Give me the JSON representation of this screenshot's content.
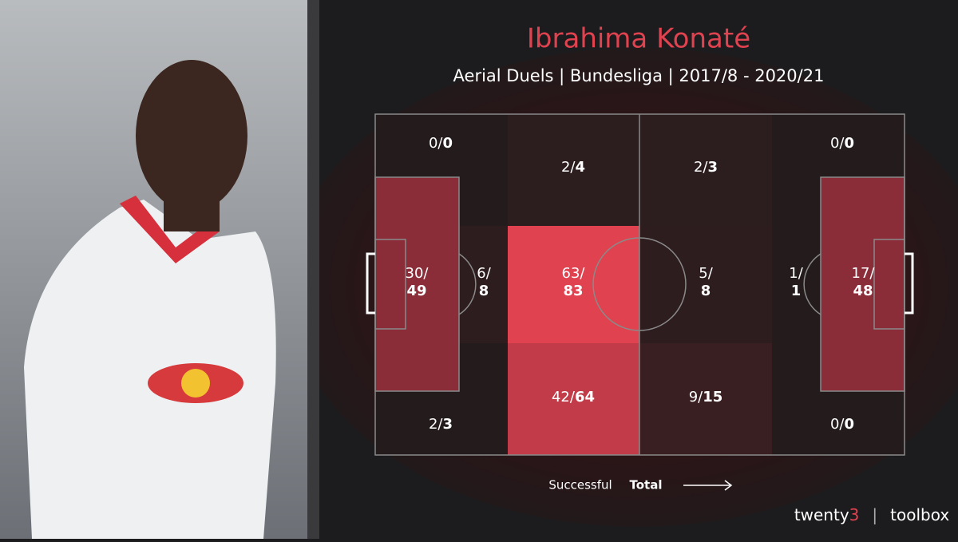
{
  "title": "Ibrahima Konaté",
  "subtitle": "Aerial Duels | Bundesliga | 2017/8 - 2020/21",
  "separator": "/",
  "zones": [
    {
      "successful": 0,
      "total": 0,
      "color": "#231b1c"
    },
    {
      "successful": 2,
      "total": 4,
      "color": "#2c1d1f"
    },
    {
      "successful": 2,
      "total": 3,
      "color": "#2c1d1f"
    },
    {
      "successful": 0,
      "total": 0,
      "color": "#231b1c"
    },
    {
      "successful": 30,
      "total": 49,
      "color": "#8b2d38"
    },
    {
      "successful": 6,
      "total": 8,
      "color": "#2e1d1f"
    },
    {
      "successful": 63,
      "total": 83,
      "color": "#e0424f"
    },
    {
      "successful": 5,
      "total": 8,
      "color": "#2e1d1f"
    },
    {
      "successful": 1,
      "total": 1,
      "color": "#231b1c"
    },
    {
      "successful": 17,
      "total": 48,
      "color": "#8b2d38"
    },
    {
      "successful": 2,
      "total": 3,
      "color": "#231b1c"
    },
    {
      "successful": 42,
      "total": 64,
      "color": "#c13b48"
    },
    {
      "successful": 9,
      "total": 15,
      "color": "#3a1f22"
    },
    {
      "successful": 0,
      "total": 0,
      "color": "#231b1c"
    }
  ],
  "legend": {
    "successful": "Successful",
    "total": "Total"
  },
  "brand": {
    "name": "twenty",
    "accent": "3",
    "divider": "|",
    "product": "toolbox"
  }
}
